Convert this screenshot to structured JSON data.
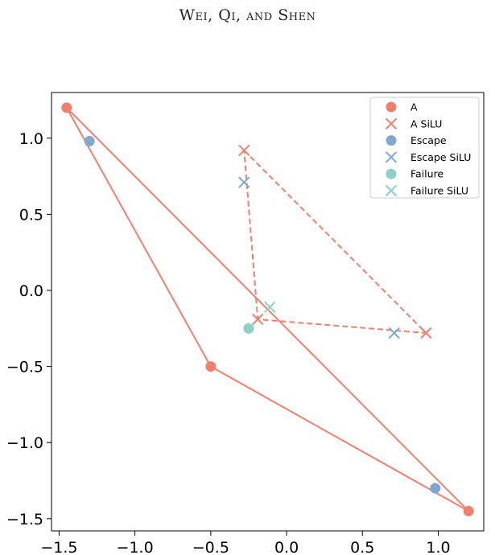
{
  "header": {
    "running_head": "Wei, Qi, and Shen"
  },
  "colors": {
    "a": "#f07f6e",
    "escape": "#7fa8d1",
    "failure": "#8dd0c6"
  },
  "chart_data": {
    "type": "scatter",
    "title": "",
    "xlabel": "",
    "ylabel": "",
    "xlim": [
      -1.55,
      1.3
    ],
    "ylim": [
      -1.58,
      1.3
    ],
    "xticks": [
      -1.5,
      -1.0,
      -0.5,
      0.0,
      0.5,
      1.0
    ],
    "xtick_labels": [
      "−1.5",
      "−1.0",
      "−0.5",
      "0.0",
      "0.5",
      "1.0"
    ],
    "yticks": [
      1.0,
      0.5,
      0.0,
      -0.5,
      -1.0,
      -1.5
    ],
    "ytick_labels": [
      "1.0",
      "0.5",
      "0.0",
      "−0.5",
      "−1.0",
      "−1.5"
    ],
    "grid": false,
    "legend_position": "top-right",
    "series": [
      {
        "name": "A",
        "marker": "circle",
        "color_key": "a",
        "line": "solid",
        "points": [
          [
            -1.45,
            1.2
          ],
          [
            1.2,
            -1.45
          ],
          [
            -0.5,
            -0.5
          ],
          [
            -1.45,
            1.2
          ]
        ]
      },
      {
        "name": "A SiLU",
        "marker": "x",
        "color_key": "a",
        "line": "dashed",
        "points": [
          [
            -0.28,
            0.92
          ],
          [
            0.92,
            -0.28
          ],
          [
            -0.19,
            -0.19
          ],
          [
            -0.28,
            0.92
          ]
        ]
      },
      {
        "name": "Escape",
        "marker": "circle",
        "color_key": "escape",
        "line": "none",
        "points": [
          [
            -1.3,
            0.98
          ],
          [
            0.98,
            -1.3
          ]
        ]
      },
      {
        "name": "Escape SiLU",
        "marker": "x",
        "color_key": "escape",
        "line": "none",
        "points": [
          [
            -0.28,
            0.71
          ],
          [
            0.71,
            -0.28
          ]
        ]
      },
      {
        "name": "Failure",
        "marker": "circle",
        "color_key": "failure",
        "line": "none",
        "points": [
          [
            -0.25,
            -0.25
          ]
        ]
      },
      {
        "name": "Failure SiLU",
        "marker": "x",
        "color_key": "failure",
        "line": "none",
        "points": [
          [
            -0.11,
            -0.11
          ]
        ]
      }
    ]
  }
}
